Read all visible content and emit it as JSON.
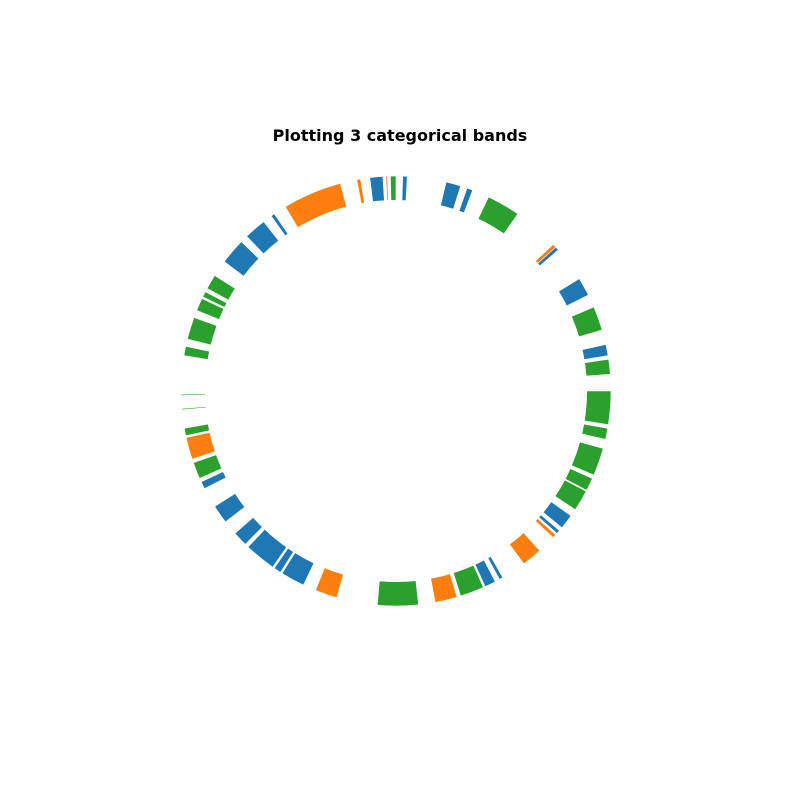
{
  "chart_data": {
    "type": "circular-bands",
    "title": "Plotting 3 categorical bands",
    "start_angle_deg": 90,
    "direction": "clockwise",
    "ring": {
      "inner_radius_frac": 0.887,
      "outer_radius_frac": 1.0
    },
    "categories": [
      "A",
      "B",
      "C"
    ],
    "colors": {
      "A": "#1f77b4",
      "B": "#ff7f0e",
      "C": "#2ca02c"
    },
    "bands": [
      {
        "category": "C",
        "start_deg": 358.5,
        "end_deg": 360.0
      },
      {
        "category": "A",
        "start_deg": 1.8,
        "end_deg": 3.0
      },
      {
        "category": "A",
        "start_deg": 13.5,
        "end_deg": 17.5
      },
      {
        "category": "A",
        "start_deg": 19.3,
        "end_deg": 20.9
      },
      {
        "category": "C",
        "start_deg": 25.5,
        "end_deg": 34.5
      },
      {
        "category": "B",
        "start_deg": 47.0,
        "end_deg": 48.0
      },
      {
        "category": "A",
        "start_deg": 48.0,
        "end_deg": 49.0
      },
      {
        "category": "A",
        "start_deg": 58.5,
        "end_deg": 63.5
      },
      {
        "category": "C",
        "start_deg": 67.0,
        "end_deg": 73.5
      },
      {
        "category": "A",
        "start_deg": 77.5,
        "end_deg": 80.5
      },
      {
        "category": "C",
        "start_deg": 81.5,
        "end_deg": 85.5
      },
      {
        "category": "C",
        "start_deg": 90.0,
        "end_deg": 99.0
      },
      {
        "category": "C",
        "start_deg": 100.0,
        "end_deg": 103.0
      },
      {
        "category": "C",
        "start_deg": 105.5,
        "end_deg": 113.0
      },
      {
        "category": "C",
        "start_deg": 114.0,
        "end_deg": 117.5
      },
      {
        "category": "C",
        "start_deg": 117.8,
        "end_deg": 123.5
      },
      {
        "category": "A",
        "start_deg": 125.5,
        "end_deg": 129.5
      },
      {
        "category": "A",
        "start_deg": 130.5,
        "end_deg": 131.5
      },
      {
        "category": "B",
        "start_deg": 132.0,
        "end_deg": 133.0
      },
      {
        "category": "B",
        "start_deg": 138.0,
        "end_deg": 143.5
      },
      {
        "category": "A",
        "start_deg": 150.2,
        "end_deg": 151.2
      },
      {
        "category": "A",
        "start_deg": 152.5,
        "end_deg": 155.5
      },
      {
        "category": "C",
        "start_deg": 156.0,
        "end_deg": 162.5
      },
      {
        "category": "B",
        "start_deg": 163.5,
        "end_deg": 169.5
      },
      {
        "category": "C",
        "start_deg": 174.0,
        "end_deg": 185.0
      },
      {
        "category": "B",
        "start_deg": 196.0,
        "end_deg": 202.0
      },
      {
        "category": "A",
        "start_deg": 205.5,
        "end_deg": 212.0
      },
      {
        "category": "A",
        "start_deg": 212.5,
        "end_deg": 214.5
      },
      {
        "category": "A",
        "start_deg": 215.0,
        "end_deg": 223.5
      },
      {
        "category": "A",
        "start_deg": 224.5,
        "end_deg": 228.5
      },
      {
        "category": "A",
        "start_deg": 232.5,
        "end_deg": 237.5
      },
      {
        "category": "A",
        "start_deg": 243.0,
        "end_deg": 245.0
      },
      {
        "category": "C",
        "start_deg": 246.0,
        "end_deg": 250.5
      },
      {
        "category": "B",
        "start_deg": 251.5,
        "end_deg": 257.5
      },
      {
        "category": "C",
        "start_deg": 258.0,
        "end_deg": 260.0
      },
      {
        "category": "C",
        "start_deg": 265.0,
        "end_deg": 265.3
      },
      {
        "category": "C",
        "start_deg": 268.8,
        "end_deg": 269.1
      },
      {
        "category": "C",
        "start_deg": 279.5,
        "end_deg": 282.0
      },
      {
        "category": "C",
        "start_deg": 284.0,
        "end_deg": 290.0
      },
      {
        "category": "C",
        "start_deg": 292.0,
        "end_deg": 295.5
      },
      {
        "category": "C",
        "start_deg": 296.0,
        "end_deg": 297.5
      },
      {
        "category": "C",
        "start_deg": 298.5,
        "end_deg": 302.5
      },
      {
        "category": "A",
        "start_deg": 307.0,
        "end_deg": 314.0
      },
      {
        "category": "A",
        "start_deg": 316.0,
        "end_deg": 322.0
      },
      {
        "category": "A",
        "start_deg": 324.5,
        "end_deg": 325.5
      },
      {
        "category": "B",
        "start_deg": 329.0,
        "end_deg": 345.0
      },
      {
        "category": "B",
        "start_deg": 349.5,
        "end_deg": 350.5
      },
      {
        "category": "A",
        "start_deg": 353.0,
        "end_deg": 356.5
      },
      {
        "category": "B",
        "start_deg": 357.3,
        "end_deg": 357.7
      }
    ]
  }
}
